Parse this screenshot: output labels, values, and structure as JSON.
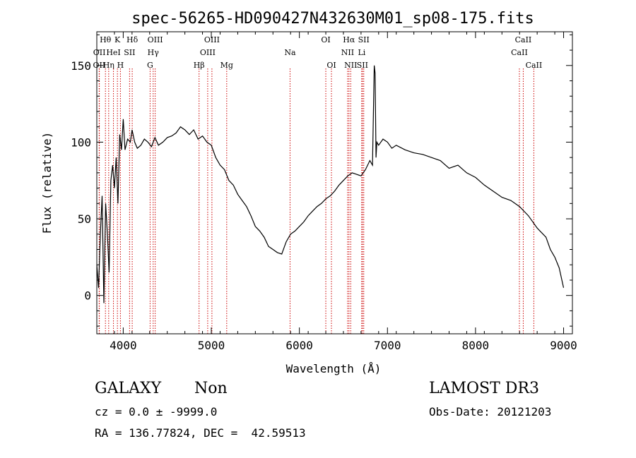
{
  "chart_data": {
    "type": "line",
    "title": "spec-56265-HD090427N432630M01_sp08-175.fits",
    "xlabel": "Wavelength (Å)",
    "ylabel": "Flux (relative)",
    "xlim": [
      3700,
      9100
    ],
    "ylim": [
      -25,
      172
    ],
    "xticks": [
      4000,
      5000,
      6000,
      7000,
      8000,
      9000
    ],
    "yticks": [
      0,
      50,
      100,
      150
    ],
    "grid": false,
    "series": [
      {
        "x": [
          3700,
          3720,
          3740,
          3760,
          3780,
          3800,
          3820,
          3840,
          3860,
          3880,
          3900,
          3920,
          3940,
          3960,
          3980,
          4000,
          4020,
          4050,
          4080,
          4100,
          4130,
          4160,
          4200,
          4240,
          4280,
          4320,
          4360,
          4400,
          4450,
          4500,
          4550,
          4600,
          4650,
          4700,
          4750,
          4800,
          4850,
          4900,
          4950,
          5000,
          5050,
          5100,
          5150,
          5200,
          5250,
          5300,
          5350,
          5400,
          5450,
          5500,
          5550,
          5600,
          5650,
          5700,
          5750,
          5800,
          5850,
          5900,
          5950,
          6000,
          6050,
          6100,
          6150,
          6200,
          6250,
          6300,
          6350,
          6400,
          6450,
          6500,
          6550,
          6600,
          6650,
          6700,
          6750,
          6800,
          6830,
          6850,
          6860,
          6870,
          6880,
          6900,
          6950,
          7000,
          7050,
          7100,
          7200,
          7300,
          7400,
          7500,
          7600,
          7700,
          7800,
          7900,
          8000,
          8100,
          8200,
          8300,
          8400,
          8500,
          8600,
          8700,
          8800,
          8850,
          8900,
          8950,
          9000
        ],
        "y": [
          20,
          5,
          40,
          65,
          -5,
          60,
          40,
          15,
          75,
          85,
          70,
          90,
          60,
          105,
          95,
          115,
          95,
          102,
          100,
          108,
          100,
          96,
          98,
          102,
          100,
          97,
          103,
          98,
          100,
          103,
          104,
          106,
          110,
          108,
          105,
          108,
          102,
          104,
          100,
          98,
          90,
          85,
          82,
          75,
          72,
          66,
          62,
          58,
          52,
          45,
          42,
          38,
          32,
          30,
          28,
          27,
          35,
          40,
          42,
          45,
          48,
          52,
          55,
          58,
          60,
          63,
          65,
          68,
          72,
          75,
          78,
          80,
          79,
          78,
          82,
          88,
          85,
          150,
          145,
          90,
          100,
          98,
          102,
          100,
          96,
          98,
          95,
          93,
          92,
          90,
          88,
          83,
          85,
          80,
          77,
          72,
          68,
          64,
          62,
          58,
          52,
          44,
          38,
          30,
          25,
          18,
          5
        ]
      }
    ],
    "lines": [
      {
        "label": "OII",
        "x": 3727,
        "row": 2
      },
      {
        "label": "OII",
        "x": 3729,
        "row": 1
      },
      {
        "label": "Hθ",
        "x": 3798,
        "row": 0
      },
      {
        "label": "Hη",
        "x": 3835,
        "row": 2
      },
      {
        "label": "HeI",
        "x": 3889,
        "row": 1
      },
      {
        "label": "K",
        "x": 3934,
        "row": 0
      },
      {
        "label": "H",
        "x": 3968,
        "row": 2
      },
      {
        "label": "SII",
        "x": 4072,
        "row": 1
      },
      {
        "label": "Hδ",
        "x": 4102,
        "row": 0
      },
      {
        "label": "G",
        "x": 4305,
        "row": 2
      },
      {
        "label": "Hγ",
        "x": 4340,
        "row": 1
      },
      {
        "label": "OIII",
        "x": 4363,
        "row": 0
      },
      {
        "label": "Hβ",
        "x": 4861,
        "row": 2
      },
      {
        "label": "OIII",
        "x": 4959,
        "row": 1
      },
      {
        "label": "OIII",
        "x": 5007,
        "row": 0
      },
      {
        "label": "Mg",
        "x": 5175,
        "row": 2
      },
      {
        "label": "Na",
        "x": 5894,
        "row": 1
      },
      {
        "label": "OI",
        "x": 6300,
        "row": 0
      },
      {
        "label": "OI",
        "x": 6364,
        "row": 2
      },
      {
        "label": "NII",
        "x": 6548,
        "row": 1
      },
      {
        "label": "Hα",
        "x": 6563,
        "row": 0
      },
      {
        "label": "NII",
        "x": 6583,
        "row": 2
      },
      {
        "label": "Li",
        "x": 6708,
        "row": 1
      },
      {
        "label": "SII",
        "x": 6716,
        "row": 2
      },
      {
        "label": "SII",
        "x": 6731,
        "row": 0
      },
      {
        "label": "CaII",
        "x": 8498,
        "row": 1
      },
      {
        "label": "CaII",
        "x": 8542,
        "row": 0
      },
      {
        "label": "CaII",
        "x": 8662,
        "row": 2
      }
    ]
  },
  "info": {
    "class_label": "GALAXY",
    "subclass_label": "Non",
    "survey": "LAMOST DR3",
    "cz_line": "cz = 0.0 ± -9999.0",
    "obs_date": "Obs-Date: 20121203",
    "radec_line": "RA = 136.77824, DEC =  42.59513"
  },
  "colors": {
    "spectrum": "#000000",
    "line_markers": "#cc0000"
  }
}
